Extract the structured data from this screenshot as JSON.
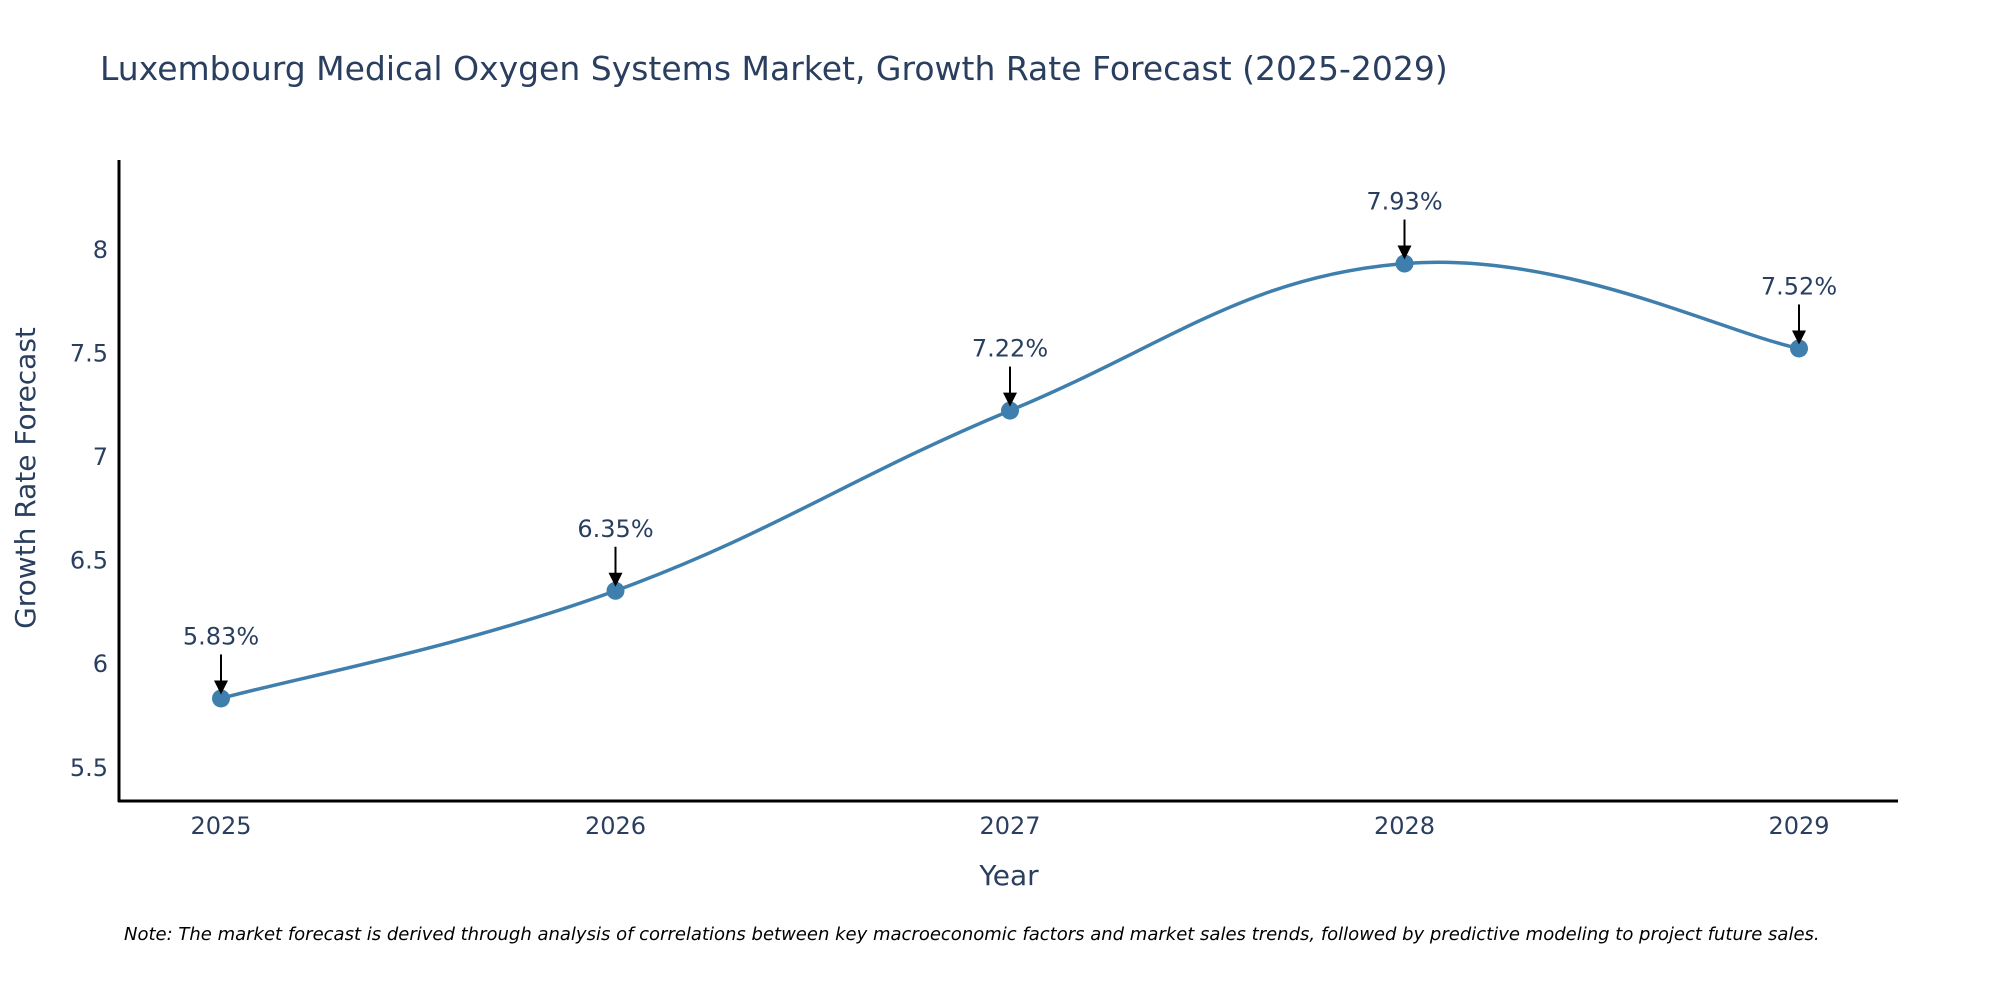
{
  "chart_data": {
    "type": "line",
    "title": "Luxembourg Medical Oxygen Systems Market, Growth Rate Forecast (2025-2029)",
    "xlabel": "Year",
    "ylabel": "Growth Rate Forecast",
    "categories": [
      "2025",
      "2026",
      "2027",
      "2028",
      "2029"
    ],
    "series": [
      {
        "name": "Growth Rate Forecast",
        "values": [
          5.83,
          6.35,
          7.22,
          7.93,
          7.52
        ],
        "labels": [
          "5.83%",
          "6.35%",
          "7.22%",
          "7.93%",
          "7.52%"
        ]
      }
    ],
    "yticks": [
      5.5,
      6,
      6.5,
      7,
      7.5,
      8
    ],
    "ytick_labels": [
      "5.5",
      "6",
      "6.5",
      "7",
      "7.5",
      "8"
    ],
    "ylim": [
      5.33,
      8.43
    ],
    "grid": false,
    "line_color": "#3f7fad",
    "marker_color": "#3f7fad",
    "arrow_color": "#000000",
    "note": "Note: The market forecast is derived through analysis of correlations between key macroeconomic factors and market sales trends, followed by predictive modeling to project future sales."
  }
}
